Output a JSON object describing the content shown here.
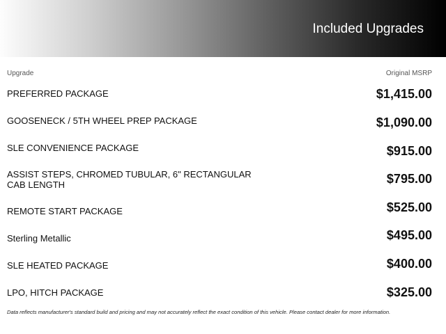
{
  "header": {
    "title": "Included Upgrades"
  },
  "columns": {
    "upgrade": "Upgrade",
    "msrp": "Original MSRP"
  },
  "rows": [
    {
      "label": "PREFERRED PACKAGE",
      "price": "$1,415.00"
    },
    {
      "label": "GOOSENECK / 5TH WHEEL PREP PACKAGE",
      "price": "$1,090.00"
    },
    {
      "label": "SLE CONVENIENCE PACKAGE",
      "price": "$915.00"
    },
    {
      "label": "ASSIST STEPS, CHROMED TUBULAR, 6\" RECTANGULAR CAB LENGTH",
      "price": "$795.00"
    },
    {
      "label": "REMOTE START PACKAGE",
      "price": "$525.00"
    },
    {
      "label": "Sterling Metallic",
      "price": "$495.00"
    },
    {
      "label": "SLE HEATED PACKAGE",
      "price": "$400.00"
    },
    {
      "label": "LPO, HITCH PACKAGE",
      "price": "$325.00"
    }
  ],
  "disclaimer": "Data reflects manufacturer's standard build and pricing and may not accurately reflect the exact condition of this vehicle. Please contact dealer for more information."
}
